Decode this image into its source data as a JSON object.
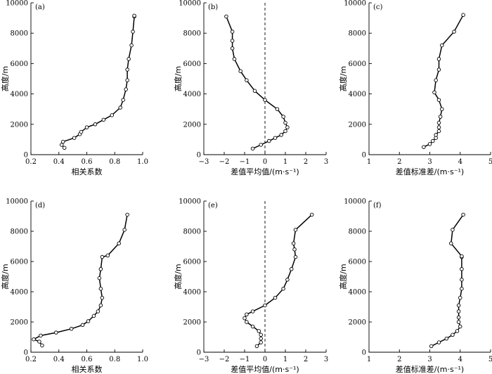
{
  "chart_data": [
    {
      "id": "a",
      "type": "line",
      "panel_label": "(a)",
      "xlabel": "相关系数",
      "ylabel": "高度/m",
      "xlim": [
        0.2,
        1.0
      ],
      "ylim": [
        0,
        10000
      ],
      "xticks": [
        0.2,
        0.4,
        0.6,
        0.8,
        1.0
      ],
      "xtick_labels": [
        "0.2",
        "0.4",
        "0.6",
        "0.8",
        "1.0"
      ],
      "yticks": [
        0,
        2000,
        4000,
        6000,
        8000,
        10000
      ],
      "ytick_labels": [
        "0",
        "2000",
        "4000",
        "6000",
        "8000",
        "10000"
      ],
      "zero_line": false,
      "marker": "open-circle",
      "series": [
        {
          "x": [
            0.44,
            0.42,
            0.43,
            0.51,
            0.55,
            0.56,
            0.6,
            0.66,
            0.72,
            0.78,
            0.84,
            0.86,
            0.88,
            0.89,
            0.89,
            0.9,
            0.92,
            0.93,
            0.94,
            0.94
          ],
          "y": [
            450,
            650,
            850,
            1100,
            1350,
            1500,
            1800,
            2000,
            2300,
            2600,
            3100,
            3600,
            4300,
            4900,
            5600,
            6300,
            7200,
            8100,
            9100,
            9150
          ]
        }
      ]
    },
    {
      "id": "b",
      "type": "line",
      "panel_label": "(b)",
      "xlabel": "差值平均值/(m·s⁻¹)",
      "ylabel": "高度/m",
      "xlim": [
        -3,
        3
      ],
      "ylim": [
        0,
        10000
      ],
      "xticks": [
        -3,
        -2,
        -1,
        0,
        1,
        2,
        3
      ],
      "xtick_labels": [
        "−3",
        "−2",
        "−1",
        "0",
        "1",
        "2",
        "3"
      ],
      "yticks": [
        0,
        2000,
        4000,
        6000,
        8000,
        10000
      ],
      "ytick_labels": [
        "0",
        "2000",
        "4000",
        "6000",
        "8000",
        "10000"
      ],
      "zero_line": true,
      "marker": "open-circle",
      "series": [
        {
          "x": [
            -0.6,
            -0.2,
            0.2,
            0.5,
            0.8,
            1.0,
            1.1,
            1.0,
            0.9,
            0.6,
            0.0,
            -0.5,
            -0.9,
            -1.2,
            -1.5,
            -1.6,
            -1.6,
            -1.6,
            -1.9
          ],
          "y": [
            400,
            650,
            900,
            1100,
            1300,
            1550,
            1800,
            2100,
            2500,
            3000,
            3600,
            4200,
            4900,
            5500,
            6300,
            7000,
            7500,
            8100,
            9100
          ]
        }
      ]
    },
    {
      "id": "c",
      "type": "line",
      "panel_label": "(c)",
      "xlabel": "差值标准差/(m·s⁻¹)",
      "ylabel": "高度/m",
      "xlim": [
        1,
        5
      ],
      "ylim": [
        0,
        10000
      ],
      "xticks": [
        1,
        2,
        3,
        4,
        5
      ],
      "xtick_labels": [
        "1",
        "2",
        "3",
        "4",
        "5"
      ],
      "yticks": [
        0,
        2000,
        4000,
        6000,
        8000,
        10000
      ],
      "ytick_labels": [
        "0",
        "2000",
        "4000",
        "6000",
        "8000",
        "10000"
      ],
      "zero_line": false,
      "marker": "open-circle",
      "series": [
        {
          "x": [
            2.8,
            3.0,
            3.1,
            3.2,
            3.2,
            3.3,
            3.3,
            3.3,
            3.35,
            3.4,
            3.3,
            3.15,
            3.2,
            3.3,
            3.3,
            3.4,
            3.8,
            4.1
          ],
          "y": [
            500,
            700,
            900,
            1100,
            1300,
            1550,
            1800,
            2100,
            2500,
            3000,
            3600,
            4100,
            4900,
            5600,
            6300,
            7200,
            8100,
            9200
          ]
        }
      ]
    },
    {
      "id": "d",
      "type": "line",
      "panel_label": "(d)",
      "xlabel": "相关系数",
      "ylabel": "高度/m",
      "xlim": [
        0.2,
        1.0
      ],
      "ylim": [
        0,
        10000
      ],
      "xticks": [
        0.2,
        0.4,
        0.6,
        0.8,
        1.0
      ],
      "xtick_labels": [
        "0.2",
        "0.4",
        "0.6",
        "0.8",
        "1.0"
      ],
      "yticks": [
        0,
        2000,
        4000,
        6000,
        8000,
        10000
      ],
      "ytick_labels": [
        "0",
        "2000",
        "4000",
        "6000",
        "8000",
        "10000"
      ],
      "zero_line": false,
      "marker": "open-circle",
      "series": [
        {
          "x": [
            0.28,
            0.26,
            0.22,
            0.27,
            0.38,
            0.49,
            0.57,
            0.61,
            0.65,
            0.68,
            0.7,
            0.71,
            0.7,
            0.69,
            0.7,
            0.71,
            0.75,
            0.83,
            0.87,
            0.89
          ],
          "y": [
            450,
            700,
            850,
            1100,
            1300,
            1550,
            1800,
            2050,
            2400,
            2700,
            3100,
            3600,
            4200,
            4900,
            5500,
            6300,
            6400,
            7200,
            8100,
            9100
          ]
        }
      ]
    },
    {
      "id": "e",
      "type": "line",
      "panel_label": "(e)",
      "xlabel": "差值平均值/(m·s⁻¹)",
      "ylabel": "高度/m",
      "xlim": [
        -3,
        3
      ],
      "ylim": [
        0,
        10000
      ],
      "xticks": [
        -3,
        -2,
        -1,
        0,
        1,
        2,
        3
      ],
      "xtick_labels": [
        "−3",
        "−2",
        "−1",
        "0",
        "1",
        "2",
        "3"
      ],
      "yticks": [
        0,
        2000,
        4000,
        6000,
        8000,
        10000
      ],
      "ytick_labels": [
        "0",
        "2000",
        "4000",
        "6000",
        "8000",
        "10000"
      ],
      "zero_line": true,
      "marker": "open-circle",
      "series": [
        {
          "x": [
            -0.4,
            -0.2,
            -0.2,
            -0.2,
            -0.3,
            -0.6,
            -0.9,
            -1.0,
            -0.9,
            -0.6,
            0.0,
            0.5,
            0.9,
            1.1,
            1.3,
            1.5,
            1.45,
            1.4,
            1.5,
            2.3
          ],
          "y": [
            400,
            650,
            900,
            1150,
            1400,
            1700,
            2000,
            2250,
            2500,
            2700,
            3100,
            3600,
            4200,
            4800,
            5500,
            6300,
            6800,
            7200,
            8100,
            9100
          ]
        }
      ]
    },
    {
      "id": "f",
      "type": "line",
      "panel_label": "(f)",
      "xlabel": "差值标准差/(m·s⁻¹)",
      "ylabel": "高度/m",
      "xlim": [
        1,
        5
      ],
      "ylim": [
        0,
        10000
      ],
      "xticks": [
        1,
        2,
        3,
        4,
        5
      ],
      "xtick_labels": [
        "1",
        "2",
        "3",
        "4",
        "5"
      ],
      "yticks": [
        0,
        2000,
        4000,
        6000,
        8000,
        10000
      ],
      "ytick_labels": [
        "0",
        "2000",
        "4000",
        "6000",
        "8000",
        "10000"
      ],
      "zero_line": false,
      "marker": "open-circle",
      "series": [
        {
          "x": [
            3.05,
            3.3,
            3.55,
            3.75,
            3.9,
            4.0,
            3.95,
            3.95,
            3.95,
            3.95,
            4.0,
            4.05,
            4.05,
            4.05,
            4.05,
            4.05,
            3.7,
            3.75,
            4.1
          ],
          "y": [
            400,
            650,
            900,
            1150,
            1400,
            1700,
            2000,
            2300,
            2700,
            3100,
            3600,
            4200,
            4800,
            5500,
            6300,
            6350,
            7200,
            8100,
            9100
          ]
        }
      ]
    }
  ]
}
